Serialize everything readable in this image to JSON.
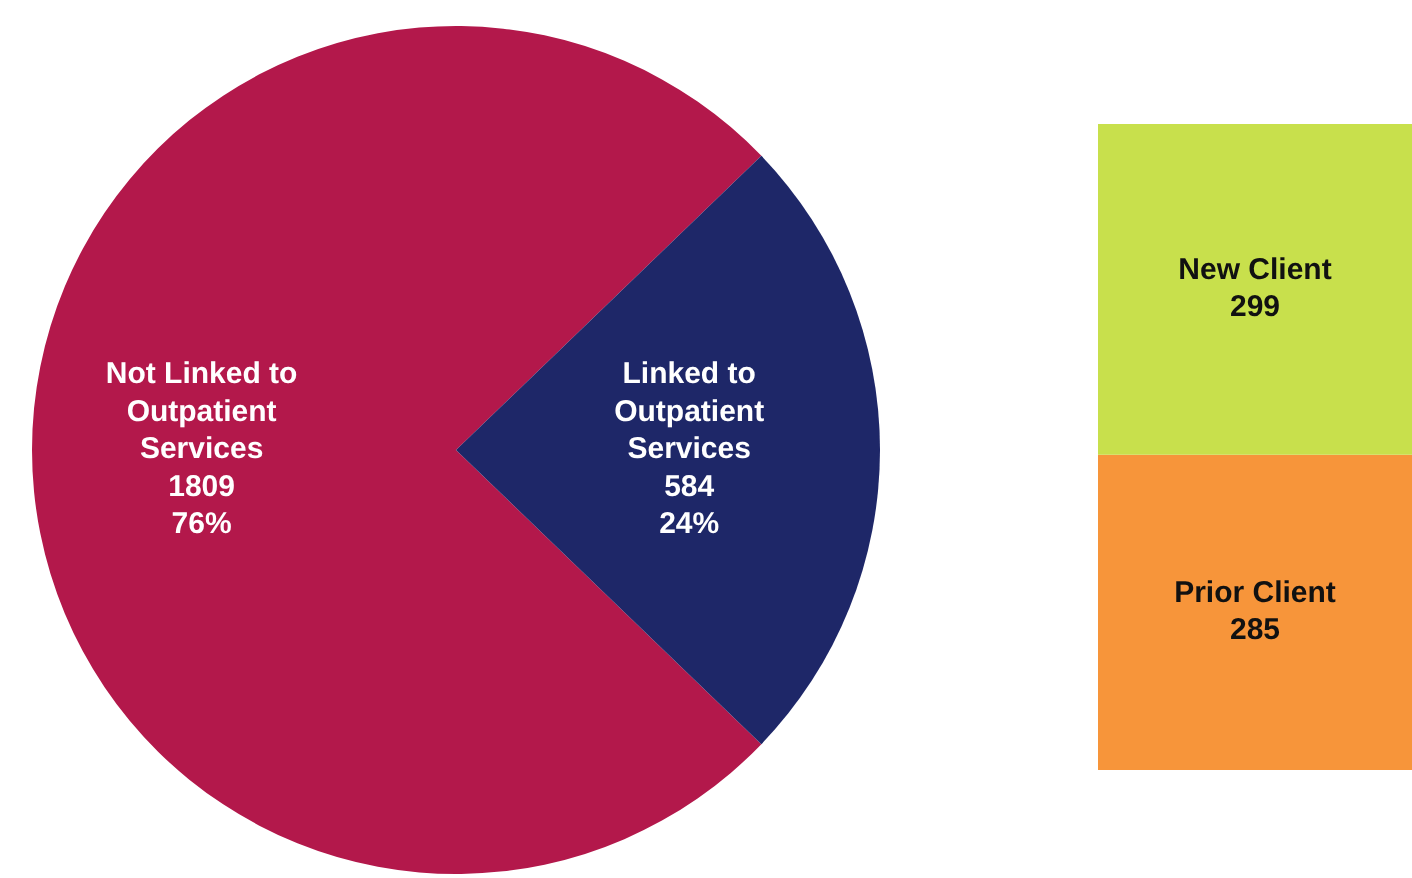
{
  "chart_data": [
    {
      "type": "pie",
      "categories": [
        "Not Linked to Outpatient Services",
        "Linked to Outpatient Services"
      ],
      "values": [
        1809,
        584
      ],
      "colors": [
        "#b3184b",
        "#1e2768"
      ],
      "data_labels": true,
      "value_labels": [
        "1809\n76%",
        "584\n24%"
      ]
    },
    {
      "type": "bar",
      "stacked": true,
      "categories": [
        null
      ],
      "data_labels": true,
      "series": [
        {
          "name": "Prior Client",
          "color": "#f7953a",
          "values": [
            285
          ]
        },
        {
          "name": "New Client",
          "color": "#c8e04c",
          "values": [
            299
          ]
        }
      ]
    }
  ]
}
